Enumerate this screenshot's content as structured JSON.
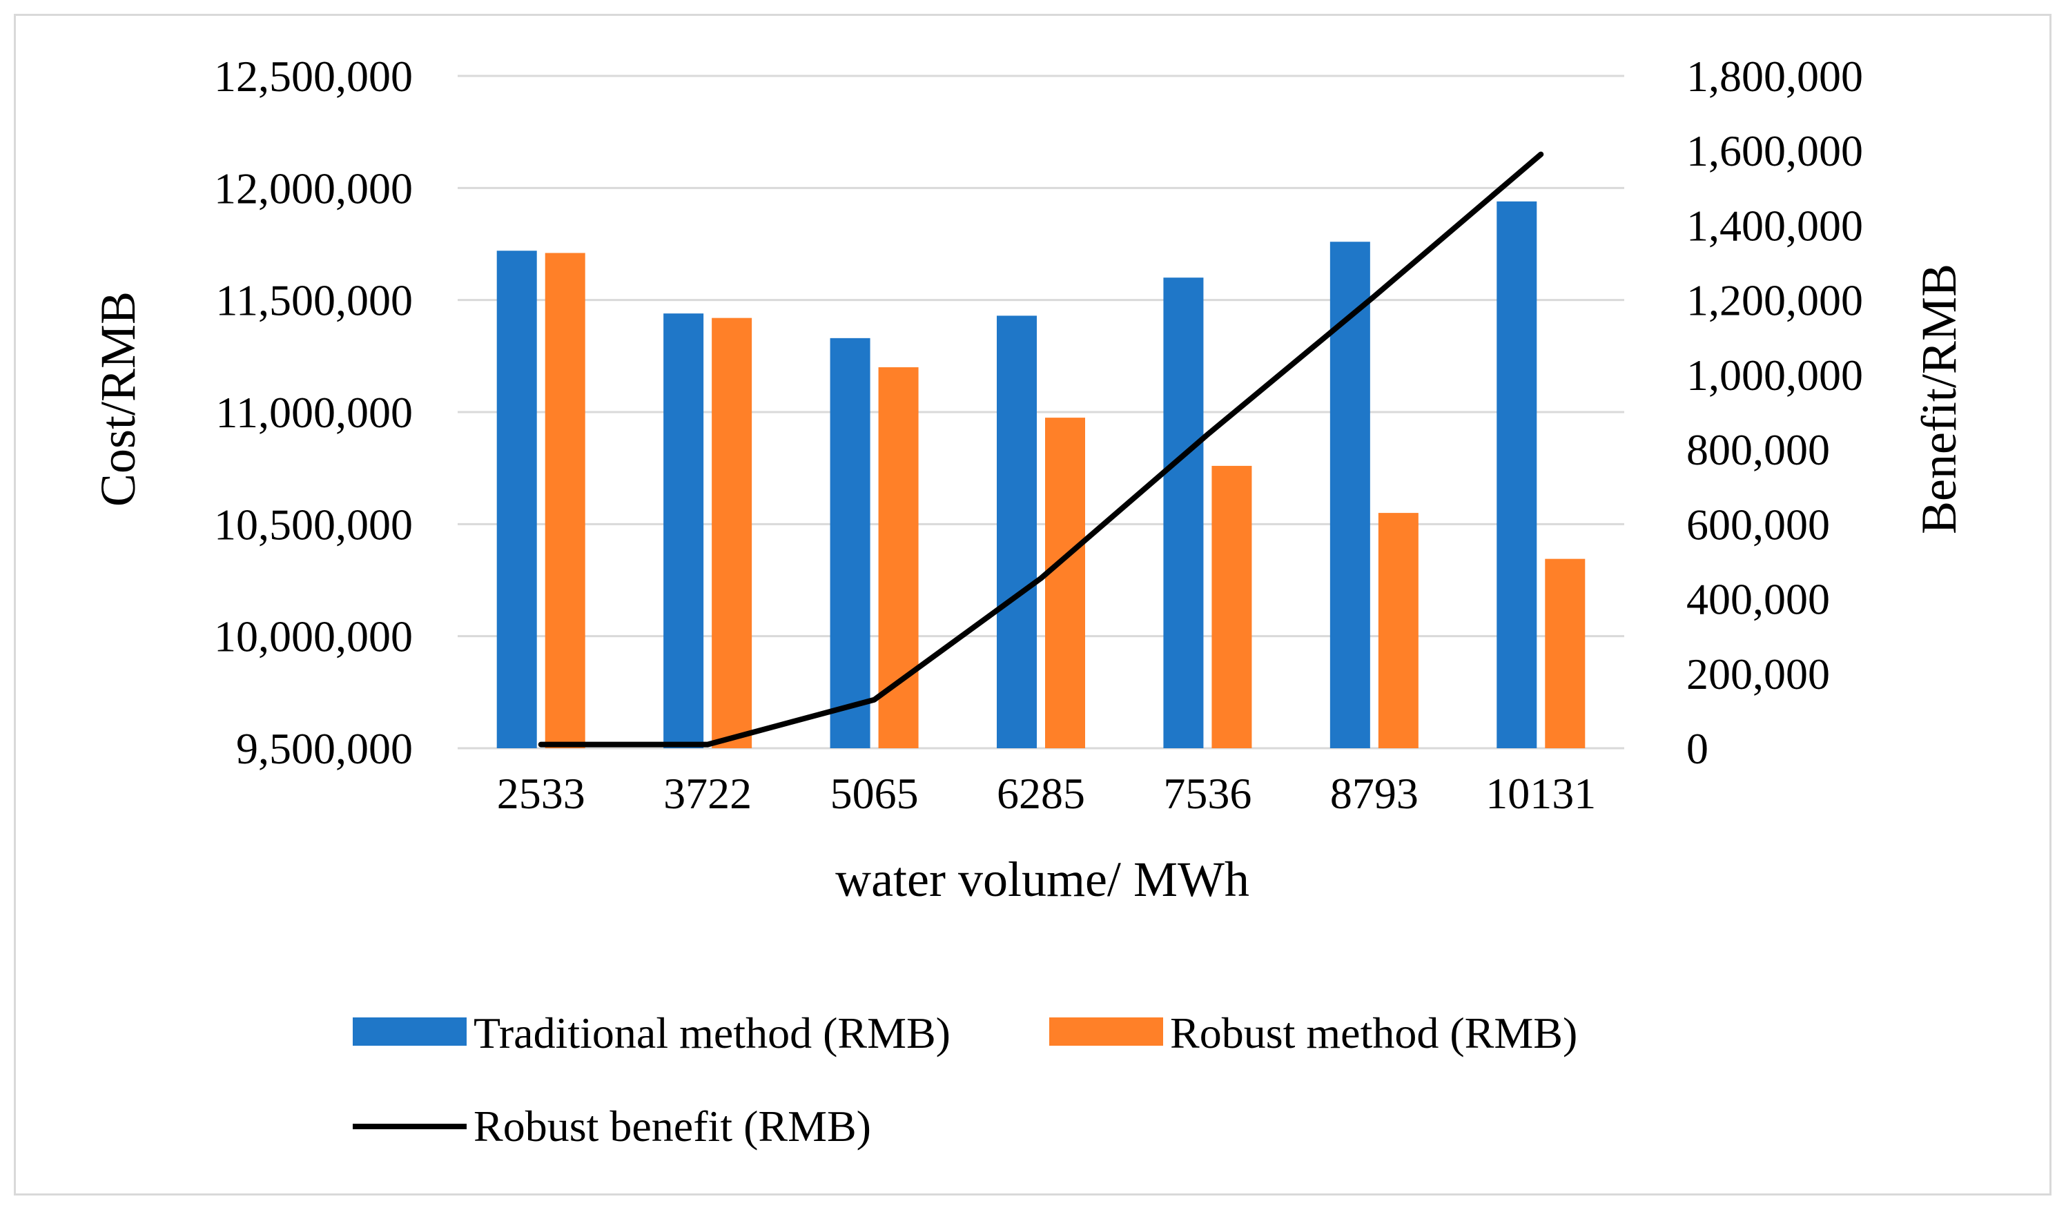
{
  "chart_data": {
    "type": "bar",
    "title": "",
    "categories": [
      "2533",
      "3722",
      "5065",
      "6285",
      "7536",
      "8793",
      "10131"
    ],
    "xlabel": "water volume/ MWh",
    "ylabel": "Cost/RMB",
    "y2label": "Benefit/RMB",
    "ylim": [
      9500000,
      12500000
    ],
    "y2lim": [
      0,
      1800000
    ],
    "yticks": [
      9500000,
      10000000,
      10500000,
      11000000,
      11500000,
      12000000,
      12500000
    ],
    "yticklabels": [
      "9,500,000",
      "10,000,000",
      "10,500,000",
      "11,000,000",
      "11,500,000",
      "12,000,000",
      "12,500,000"
    ],
    "y2ticks": [
      0,
      200000,
      400000,
      600000,
      800000,
      1000000,
      1200000,
      1400000,
      1600000,
      1800000
    ],
    "y2ticklabels": [
      "0",
      "200,000",
      "400,000",
      "600,000",
      "800,000",
      "1,000,000",
      "1,200,000",
      "1,400,000",
      "1,600,000",
      "1,800,000"
    ],
    "grid": true,
    "legend_position": "bottom",
    "series": [
      {
        "name": "Traditional method (RMB)",
        "kind": "bar",
        "axis": "left",
        "color": "#1f77c8",
        "values": [
          11720000,
          11440000,
          11330000,
          11430000,
          11600000,
          11760000,
          11940000
        ]
      },
      {
        "name": "Robust method (RMB)",
        "kind": "bar",
        "axis": "left",
        "color": "#ff8028",
        "values": [
          11710000,
          11420000,
          11200000,
          10975000,
          10760000,
          10550000,
          10345000
        ]
      },
      {
        "name": "Robust benefit (RMB)",
        "kind": "line",
        "axis": "right",
        "color": "#000000",
        "values": [
          10000,
          10000,
          130000,
          455000,
          840000,
          1210000,
          1590000
        ]
      }
    ]
  }
}
